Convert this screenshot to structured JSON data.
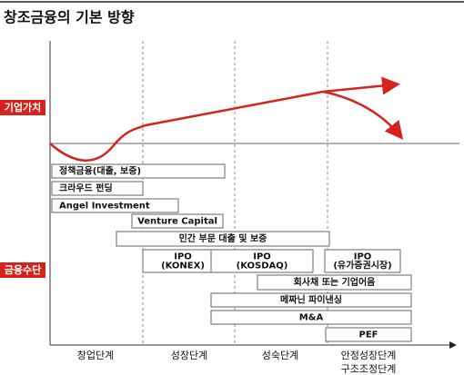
{
  "header": {
    "title": "창조금융의 기본 방향"
  },
  "axis_labels": [
    "기업가치",
    "금융수단"
  ],
  "stages": [
    [
      "창업단계"
    ],
    [
      "성장단계"
    ],
    [
      "성숙단계"
    ],
    [
      "안정성장단계",
      "구조조정단계"
    ]
  ],
  "boxes": [
    {
      "lines": [
        "정책금융(대출, 보증)"
      ]
    },
    {
      "lines": [
        "크라우드 펀딩"
      ]
    },
    {
      "lines": [
        "Angel Investment"
      ]
    },
    {
      "lines": [
        "Venture Capital"
      ]
    },
    {
      "lines": [
        "민간 부문 대출 및 보증"
      ]
    },
    {
      "lines": [
        "IPO",
        "(KONEX)"
      ]
    },
    {
      "lines": [
        "IPO",
        "(KOSDAQ)"
      ]
    },
    {
      "lines": [
        "IPO",
        "(유가증권시장)"
      ]
    },
    {
      "lines": [
        "회사채 또는 기업어음"
      ]
    },
    {
      "lines": [
        "메짜닌 파이낸싱"
      ]
    },
    {
      "lines": [
        "M&A"
      ]
    },
    {
      "lines": [
        "PEF"
      ]
    }
  ]
}
